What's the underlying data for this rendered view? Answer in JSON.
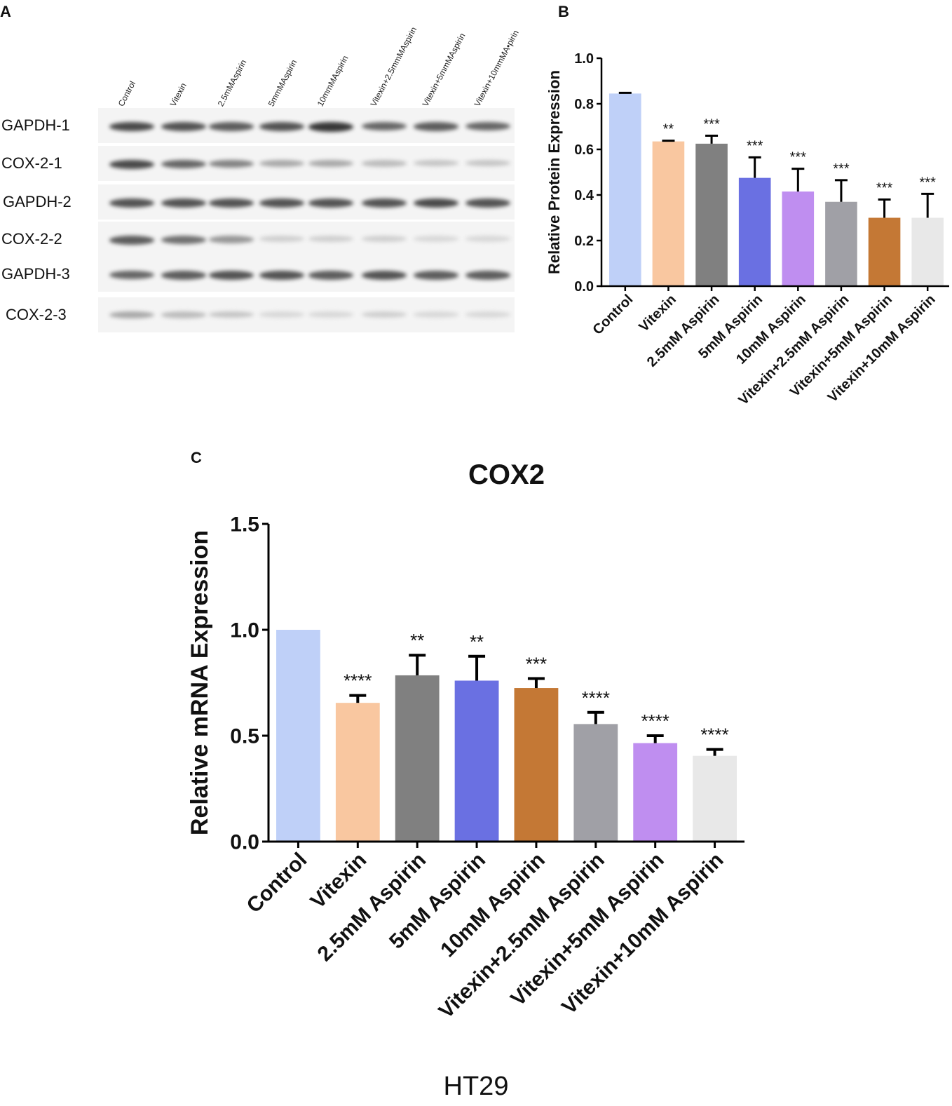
{
  "panels": {
    "a": "A",
    "b": "B",
    "c": "C"
  },
  "blot": {
    "lanes": [
      "Control",
      "Vitexin",
      "2.5mMAspirin",
      "5mmMAspirin",
      "10mmMAspirin",
      "Vitexin+2.5mmMAspirin",
      "Vitexin+5mmMAspirin",
      "Vitexin+10mmMA•pirin"
    ],
    "rows": [
      {
        "label": "GAPDH-1",
        "intensity": [
          0.85,
          0.8,
          0.75,
          0.8,
          0.95,
          0.7,
          0.75,
          0.7
        ]
      },
      {
        "label": "COX-2-1",
        "intensity": [
          0.85,
          0.7,
          0.55,
          0.35,
          0.35,
          0.25,
          0.2,
          0.2
        ]
      },
      {
        "label": "GAPDH-2",
        "intensity": [
          0.8,
          0.8,
          0.8,
          0.8,
          0.8,
          0.8,
          0.85,
          0.8
        ]
      },
      {
        "label": "COX-2-2",
        "intensity": [
          0.75,
          0.65,
          0.45,
          0.15,
          0.15,
          0.15,
          0.1,
          0.1
        ]
      },
      {
        "label": "GAPDH-3",
        "intensity": [
          0.7,
          0.75,
          0.8,
          0.8,
          0.75,
          0.8,
          0.75,
          0.75
        ]
      },
      {
        "label": "COX-2-3",
        "intensity": [
          0.35,
          0.25,
          0.2,
          0.1,
          0.1,
          0.15,
          0.1,
          0.1
        ]
      }
    ]
  },
  "chart_data": [
    {
      "type": "bar",
      "panel": "B",
      "title": "",
      "xlabel": "",
      "ylabel": "Relative Protein Expression",
      "ylim": [
        0,
        1.0
      ],
      "yticks": [
        "0.0",
        "0.2",
        "0.4",
        "0.6",
        "0.8",
        "1.0"
      ],
      "categories": [
        "Control",
        "Vitexin",
        "2.5mM Aspirin",
        "5mM Aspirin",
        "10mM Aspirin",
        "Vitexin+2.5mM Aspirin",
        "Vitexin+5mM Aspirin",
        "Vitexin+10mM Aspirin"
      ],
      "values": [
        0.845,
        0.635,
        0.625,
        0.475,
        0.415,
        0.37,
        0.3,
        0.3
      ],
      "errors": [
        0.003,
        0.003,
        0.035,
        0.09,
        0.1,
        0.095,
        0.08,
        0.105
      ],
      "significance": [
        "",
        "**",
        "***",
        "***",
        "***",
        "***",
        "***",
        "***"
      ],
      "colors": [
        "#bfd0f8",
        "#f9c7a0",
        "#808080",
        "#6a70e2",
        "#bf8ef0",
        "#a0a0a6",
        "#c47835",
        "#e8e8e8"
      ]
    },
    {
      "type": "bar",
      "panel": "C",
      "title": "COX2",
      "xlabel": "",
      "ylabel": "Relative mRNA Expression",
      "ylim": [
        0,
        1.5
      ],
      "yticks": [
        "0.0",
        "0.5",
        "1.0",
        "1.5"
      ],
      "categories": [
        "Control",
        "Vitexin",
        "2.5mM Aspirin",
        "5mM Aspirin",
        "10mM Aspirin",
        "Vitexin+2.5mM Aspirin",
        "Vitexin+5mM Aspirin",
        "Vitexin+10mM Aspirin"
      ],
      "values": [
        1.0,
        0.655,
        0.785,
        0.76,
        0.725,
        0.555,
        0.465,
        0.405
      ],
      "errors": [
        0.0,
        0.035,
        0.095,
        0.115,
        0.045,
        0.055,
        0.035,
        0.03
      ],
      "significance": [
        "",
        "****",
        "**",
        "**",
        "***",
        "****",
        "****",
        "****"
      ],
      "colors": [
        "#bfd0f8",
        "#f9c7a0",
        "#808080",
        "#6a70e2",
        "#c47835",
        "#a0a0a6",
        "#bf8ef0",
        "#e8e8e8"
      ]
    }
  ],
  "footer": "HT29"
}
